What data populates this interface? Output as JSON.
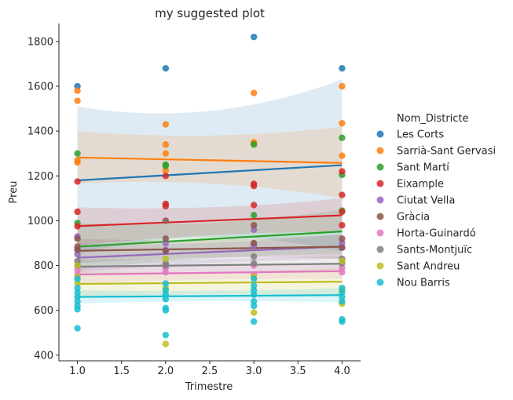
{
  "chart_data": {
    "type": "scatter",
    "title": "my suggested plot",
    "xlabel": "Trimestre",
    "ylabel": "Preu",
    "xlim": [
      0.79,
      4.21
    ],
    "ylim": [
      375,
      1880
    ],
    "xticks": [
      "1.0",
      "1.5",
      "2.0",
      "2.5",
      "3.0",
      "3.5",
      "4.0"
    ],
    "yticks": [
      "400",
      "600",
      "800",
      "1000",
      "1200",
      "1400",
      "1600",
      "1800"
    ],
    "legend_title": "Nom_Districte",
    "legend_position": "right",
    "series": [
      {
        "name": "Les Corts",
        "color": "#1f77b4",
        "points": [
          [
            1,
            1600
          ],
          [
            2,
            1680
          ],
          [
            3,
            1820
          ],
          [
            4,
            1680
          ]
        ],
        "fit": [
          1180,
          1248
        ],
        "band": [
          [
            1510,
            850
          ],
          [
            1410,
            1000
          ],
          [
            1630,
            860
          ]
        ]
      },
      {
        "name": "Sarrià-Sant Gervasi",
        "color": "#ff7f0e",
        "points": [
          [
            1,
            1580
          ],
          [
            1,
            1535
          ],
          [
            1,
            1270
          ],
          [
            1,
            1260
          ],
          [
            2,
            1430
          ],
          [
            2,
            1340
          ],
          [
            2,
            1300
          ],
          [
            2,
            1225
          ],
          [
            3,
            1570
          ],
          [
            3,
            1350
          ],
          [
            3,
            1345
          ],
          [
            4,
            1600
          ],
          [
            4,
            1435
          ],
          [
            4,
            1290
          ]
        ],
        "fit": [
          1282,
          1258
        ],
        "band": [
          [
            1400,
            1165
          ],
          [
            1350,
            1200
          ],
          [
            1420,
            1100
          ]
        ]
      },
      {
        "name": "Sant Martí",
        "color": "#2ca02c",
        "points": [
          [
            1,
            1300
          ],
          [
            1,
            990
          ],
          [
            2,
            1250
          ],
          [
            2,
            1245
          ],
          [
            3,
            1340
          ],
          [
            3,
            1025
          ],
          [
            4,
            1370
          ],
          [
            4,
            1205
          ],
          [
            4,
            1045
          ]
        ],
        "fit": [
          884,
          952
        ],
        "band": [
          [
            990,
            780
          ],
          [
            960,
            850
          ],
          [
            1050,
            850
          ]
        ]
      },
      {
        "name": "Eixample",
        "color": "#d62728",
        "points": [
          [
            1,
            1175
          ],
          [
            1,
            1040
          ],
          [
            1,
            975
          ],
          [
            2,
            1200
          ],
          [
            2,
            1075
          ],
          [
            2,
            1065
          ],
          [
            3,
            1165
          ],
          [
            3,
            1155
          ],
          [
            3,
            1070
          ],
          [
            4,
            1220
          ],
          [
            4,
            1115
          ],
          [
            4,
            1040
          ],
          [
            4,
            980
          ]
        ],
        "fit": [
          976,
          1024
        ],
        "band": [
          [
            1060,
            890
          ],
          [
            1040,
            950
          ],
          [
            1100,
            950
          ]
        ]
      },
      {
        "name": "Ciutat Vella",
        "color": "#9467bd",
        "points": [
          [
            1,
            930
          ],
          [
            1,
            870
          ],
          [
            1,
            850
          ],
          [
            2,
            900
          ],
          [
            2,
            870
          ],
          [
            3,
            960
          ],
          [
            3,
            890
          ],
          [
            4,
            900
          ],
          [
            4,
            880
          ]
        ],
        "fit": [
          835,
          885
        ],
        "band": [
          [
            900,
            770
          ],
          [
            880,
            820
          ],
          [
            940,
            830
          ]
        ]
      },
      {
        "name": "Gràcia",
        "color": "#8c564b",
        "points": [
          [
            1,
            920
          ],
          [
            1,
            885
          ],
          [
            1,
            870
          ],
          [
            2,
            1000
          ],
          [
            2,
            920
          ],
          [
            2,
            865
          ],
          [
            3,
            980
          ],
          [
            3,
            900
          ],
          [
            4,
            920
          ],
          [
            4,
            880
          ]
        ],
        "fit": [
          866,
          884
        ],
        "band": [
          [
            920,
            810
          ],
          [
            900,
            850
          ],
          [
            940,
            830
          ]
        ]
      },
      {
        "name": "Horta-Guinardó",
        "color": "#e377c2",
        "points": [
          [
            1,
            780
          ],
          [
            1,
            760
          ],
          [
            2,
            790
          ],
          [
            2,
            770
          ],
          [
            3,
            800
          ],
          [
            3,
            760
          ],
          [
            4,
            790
          ],
          [
            4,
            770
          ]
        ],
        "fit": [
          760,
          775
        ],
        "band": [
          [
            800,
            720
          ],
          [
            790,
            745
          ],
          [
            810,
            740
          ]
        ]
      },
      {
        "name": "Sants-Montjuïc",
        "color": "#7f7f7f",
        "points": [
          [
            1,
            820
          ],
          [
            1,
            800
          ],
          [
            2,
            810
          ],
          [
            2,
            800
          ],
          [
            3,
            840
          ],
          [
            3,
            810
          ],
          [
            4,
            830
          ],
          [
            4,
            810
          ]
        ],
        "fit": [
          795,
          808
        ],
        "band": [
          [
            830,
            760
          ],
          [
            820,
            780
          ],
          [
            845,
            770
          ]
        ]
      },
      {
        "name": "Sant Andreu",
        "color": "#bcbd22",
        "points": [
          [
            1,
            800
          ],
          [
            1,
            750
          ],
          [
            1,
            720
          ],
          [
            2,
            830
          ],
          [
            2,
            700
          ],
          [
            2,
            450
          ],
          [
            3,
            750
          ],
          [
            3,
            590
          ],
          [
            4,
            820
          ],
          [
            4,
            690
          ],
          [
            4,
            630
          ]
        ],
        "fit": [
          718,
          728
        ],
        "band": [
          [
            775,
            660
          ],
          [
            760,
            680
          ],
          [
            790,
            665
          ]
        ]
      },
      {
        "name": "Nou Barris",
        "color": "#17becf",
        "points": [
          [
            1,
            740
          ],
          [
            1,
            700
          ],
          [
            1,
            680
          ],
          [
            1,
            660
          ],
          [
            1,
            640
          ],
          [
            1,
            620
          ],
          [
            1,
            605
          ],
          [
            1,
            520
          ],
          [
            2,
            720
          ],
          [
            2,
            690
          ],
          [
            2,
            670
          ],
          [
            2,
            650
          ],
          [
            2,
            610
          ],
          [
            2,
            600
          ],
          [
            2,
            490
          ],
          [
            3,
            740
          ],
          [
            3,
            710
          ],
          [
            3,
            690
          ],
          [
            3,
            670
          ],
          [
            3,
            640
          ],
          [
            3,
            620
          ],
          [
            3,
            550
          ],
          [
            4,
            700
          ],
          [
            4,
            680
          ],
          [
            4,
            660
          ],
          [
            4,
            640
          ],
          [
            4,
            560
          ],
          [
            4,
            550
          ]
        ],
        "fit": [
          660,
          668
        ],
        "band": [
          [
            690,
            630
          ],
          [
            680,
            650
          ],
          [
            700,
            635
          ]
        ]
      }
    ]
  }
}
